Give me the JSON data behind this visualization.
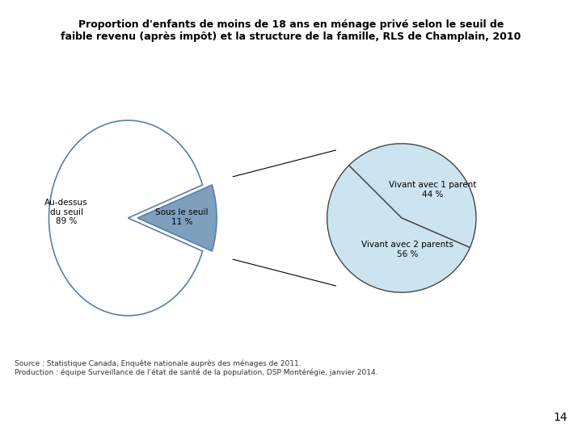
{
  "title_line1": "Proportion d'enfants de moins de 18 ans en ménage privé selon le seuil de",
  "title_line2": "faible revenu (après impôt) et la structure de la famille, RLS de Champlain, 2010",
  "pie1_values": [
    89,
    11
  ],
  "pie1_colors": [
    "#ffffff",
    "#7f9fbe"
  ],
  "pie1_edge_color": "#5a7fa8",
  "pie2_values": [
    44,
    56
  ],
  "pie2_colors": [
    "#cce4ef",
    "#cce4ef"
  ],
  "pie2_edge_color": "#444444",
  "source_line1": "Source : Statistique Canada, Enquête nationale auprès des ménages de 2011.",
  "source_line2": "Production : équipe Surveillance de l'état de santé de la population, DSP Montérégie, janvier 2014.",
  "page_number": "14",
  "bg_color": "#ffffff",
  "title_fontsize": 9,
  "label_fontsize": 7.5,
  "source_fontsize": 6.5
}
